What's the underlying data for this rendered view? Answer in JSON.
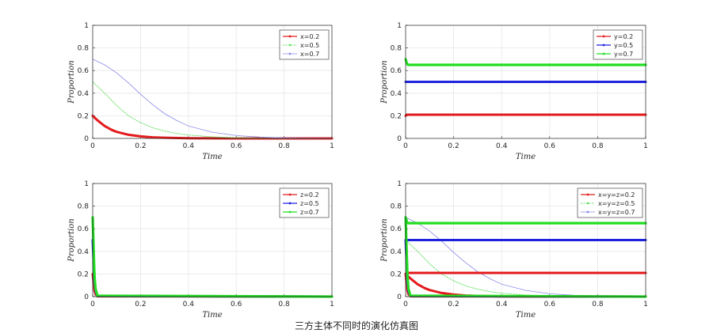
{
  "figure": {
    "caption": "三方主体不同时的演化仿真图"
  },
  "colors": {
    "red": "#e41a1c",
    "green": "#22dd22",
    "blue": "#1f22dd",
    "lightblue": "#8a8ae8",
    "lightgreen": "#66e066",
    "grid": "#e6e6e6",
    "axis": "#262626"
  },
  "chart_data": [
    {
      "type": "line",
      "xlabel": "Time",
      "ylabel": "Proportion",
      "xlim": [
        0,
        1
      ],
      "ylim": [
        0,
        1
      ],
      "xticks": [
        "0",
        "0.2",
        "0.4",
        "0.6",
        "0.8",
        "1"
      ],
      "yticks": [
        "0",
        "0.2",
        "0.4",
        "0.6",
        "0.8",
        "1"
      ],
      "grid": true,
      "legend_position": "top-right",
      "series": [
        {
          "name": "x=0.2",
          "style": "thick-red",
          "x": [
            0,
            0.02,
            0.05,
            0.08,
            0.1,
            0.15,
            0.2,
            0.25,
            0.3,
            0.4,
            0.5,
            0.6,
            0.8,
            1.0
          ],
          "y": [
            0.2,
            0.16,
            0.11,
            0.075,
            0.058,
            0.032,
            0.018,
            0.01,
            0.006,
            0.002,
            0.001,
            0,
            0,
            0
          ]
        },
        {
          "name": "x=0.5",
          "style": "dotted-green",
          "x": [
            0,
            0.05,
            0.1,
            0.15,
            0.2,
            0.25,
            0.3,
            0.35,
            0.4,
            0.5,
            0.6,
            0.7,
            0.8,
            1.0
          ],
          "y": [
            0.5,
            0.4,
            0.29,
            0.2,
            0.14,
            0.095,
            0.065,
            0.045,
            0.03,
            0.014,
            0.006,
            0.003,
            0.001,
            0
          ]
        },
        {
          "name": "x=0.7",
          "style": "thin-blue",
          "x": [
            0,
            0.05,
            0.1,
            0.15,
            0.2,
            0.25,
            0.3,
            0.35,
            0.4,
            0.5,
            0.6,
            0.7,
            0.8,
            0.9,
            1.0
          ],
          "y": [
            0.7,
            0.65,
            0.58,
            0.49,
            0.39,
            0.3,
            0.22,
            0.16,
            0.11,
            0.055,
            0.025,
            0.012,
            0.005,
            0.002,
            0.001
          ]
        }
      ]
    },
    {
      "type": "line",
      "xlabel": "Time",
      "ylabel": "Proportion",
      "xlim": [
        0,
        1
      ],
      "ylim": [
        0,
        1
      ],
      "xticks": [
        "0",
        "0.2",
        "0.4",
        "0.6",
        "0.8",
        "1"
      ],
      "yticks": [
        "0",
        "0.2",
        "0.4",
        "0.6",
        "0.8",
        "1"
      ],
      "grid": true,
      "legend_position": "top-right",
      "series": [
        {
          "name": "y=0.2",
          "style": "thick-red",
          "x": [
            0,
            0.005,
            0.01,
            0.02,
            1.0
          ],
          "y": [
            0.2,
            0.21,
            0.21,
            0.21,
            0.21
          ]
        },
        {
          "name": "y=0.5",
          "style": "thick-blue",
          "x": [
            0,
            0.005,
            0.01,
            1.0
          ],
          "y": [
            0.5,
            0.5,
            0.5,
            0.5
          ]
        },
        {
          "name": "y=0.7",
          "style": "thick-green",
          "x": [
            0,
            0.003,
            0.006,
            0.01,
            0.02,
            1.0
          ],
          "y": [
            0.7,
            0.68,
            0.66,
            0.65,
            0.65,
            0.65
          ]
        }
      ]
    },
    {
      "type": "line",
      "xlabel": "Time",
      "ylabel": "Proportion",
      "xlim": [
        0,
        1
      ],
      "ylim": [
        0,
        1
      ],
      "xticks": [
        "0",
        "0.2",
        "0.4",
        "0.6",
        "0.8",
        "1"
      ],
      "yticks": [
        "0",
        "0.2",
        "0.4",
        "0.6",
        "0.8",
        "1"
      ],
      "grid": true,
      "legend_position": "top-right",
      "series": [
        {
          "name": "z=0.2",
          "style": "thick-red",
          "x": [
            0,
            0.002,
            0.004,
            0.006,
            0.008,
            0.012,
            0.02,
            1.0
          ],
          "y": [
            0.2,
            0.16,
            0.12,
            0.08,
            0.05,
            0.02,
            0.003,
            0
          ]
        },
        {
          "name": "z=0.5",
          "style": "thick-blue",
          "x": [
            0,
            0.002,
            0.004,
            0.006,
            0.008,
            0.012,
            0.02,
            1.0
          ],
          "y": [
            0.5,
            0.4,
            0.3,
            0.2,
            0.12,
            0.05,
            0.005,
            0
          ]
        },
        {
          "name": "z=0.7",
          "style": "thick-green",
          "x": [
            0,
            0.002,
            0.004,
            0.006,
            0.008,
            0.012,
            0.02,
            1.0
          ],
          "y": [
            0.7,
            0.56,
            0.42,
            0.28,
            0.17,
            0.07,
            0.008,
            0
          ]
        }
      ]
    },
    {
      "type": "line",
      "xlabel": "Time",
      "ylabel": "Proportion",
      "xlim": [
        0,
        1
      ],
      "ylim": [
        0,
        1
      ],
      "xticks": [
        "0",
        "0.2",
        "0.4",
        "0.6",
        "0.8",
        "1"
      ],
      "yticks": [
        "0",
        "0.2",
        "0.4",
        "0.6",
        "0.8",
        "1"
      ],
      "grid": true,
      "legend_position": "top-right",
      "series": [
        {
          "name": "x=y=z=0.2",
          "style": "thick-red",
          "x": [
            0,
            0.02,
            0.05,
            0.08,
            0.1,
            0.15,
            0.2,
            0.25,
            0.3,
            0.4,
            0.5,
            0.6,
            0.8,
            1.0
          ],
          "y": [
            0.2,
            0.16,
            0.11,
            0.075,
            0.058,
            0.032,
            0.018,
            0.01,
            0.006,
            0.002,
            0.001,
            0,
            0,
            0
          ]
        },
        {
          "name": "x=y=z=0.5",
          "style": "dotted-green",
          "x": [
            0,
            0.05,
            0.1,
            0.15,
            0.2,
            0.25,
            0.3,
            0.35,
            0.4,
            0.5,
            0.6,
            0.7,
            0.8,
            1.0
          ],
          "y": [
            0.5,
            0.4,
            0.29,
            0.2,
            0.14,
            0.095,
            0.065,
            0.045,
            0.03,
            0.014,
            0.006,
            0.003,
            0.001,
            0
          ]
        },
        {
          "name": "x=y=z=0.7",
          "style": "thin-blue",
          "x": [
            0,
            0.05,
            0.1,
            0.15,
            0.2,
            0.25,
            0.3,
            0.35,
            0.4,
            0.5,
            0.6,
            0.7,
            0.8,
            0.9,
            1.0
          ],
          "y": [
            0.7,
            0.65,
            0.58,
            0.49,
            0.39,
            0.3,
            0.22,
            0.16,
            0.11,
            0.055,
            0.025,
            0.012,
            0.005,
            0.002,
            0.001
          ]
        },
        {
          "name": "",
          "style": "thick-red",
          "x": [
            0,
            0.005,
            0.01,
            1.0
          ],
          "y": [
            0.2,
            0.21,
            0.21,
            0.21
          ]
        },
        {
          "name": "",
          "style": "thick-blue",
          "x": [
            0,
            0.005,
            1.0
          ],
          "y": [
            0.5,
            0.5,
            0.5
          ]
        },
        {
          "name": "",
          "style": "thick-green",
          "x": [
            0,
            0.003,
            0.006,
            0.01,
            1.0
          ],
          "y": [
            0.7,
            0.68,
            0.66,
            0.65,
            0.65
          ]
        },
        {
          "name": "",
          "style": "thick-red",
          "x": [
            0,
            0.004,
            0.008,
            0.012,
            0.02,
            1.0
          ],
          "y": [
            0.2,
            0.12,
            0.05,
            0.02,
            0.003,
            0
          ]
        },
        {
          "name": "",
          "style": "thick-blue",
          "x": [
            0,
            0.004,
            0.008,
            0.012,
            0.02,
            1.0
          ],
          "y": [
            0.5,
            0.3,
            0.12,
            0.05,
            0.005,
            0
          ]
        },
        {
          "name": "",
          "style": "thick-green",
          "x": [
            0,
            0.004,
            0.008,
            0.012,
            0.02,
            1.0
          ],
          "y": [
            0.7,
            0.42,
            0.17,
            0.07,
            0.008,
            0
          ]
        }
      ]
    }
  ]
}
